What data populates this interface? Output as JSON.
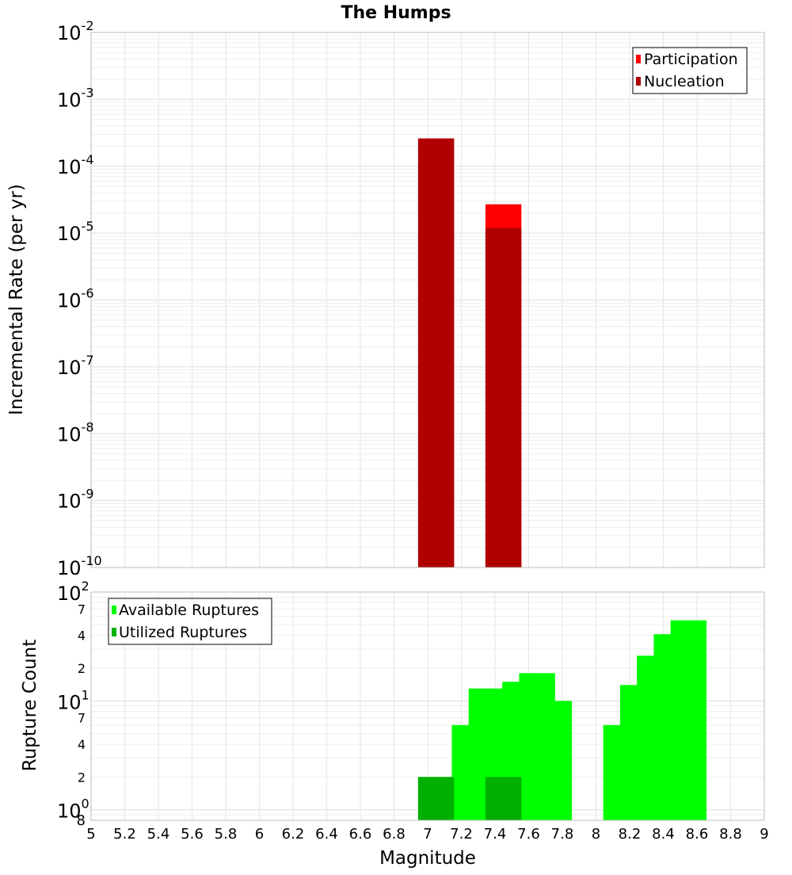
{
  "chart_data": [
    {
      "type": "bar",
      "title": "The Humps",
      "xlabel": "",
      "ylabel": "Incremental Rate (per yr)",
      "x_range": [
        5,
        9
      ],
      "y_scale": "log",
      "ylim": [
        1e-10,
        0.01
      ],
      "y_tick_exponents": [
        "-10",
        "-9",
        "-8",
        "-7",
        "-6",
        "-5",
        "-4",
        "-3",
        "-2"
      ],
      "grid": true,
      "legend_position": "top-right",
      "series": [
        {
          "name": "Participation",
          "color": "#ff0000",
          "x": [
            7.05,
            7.45
          ],
          "values": [
            0.00026,
            2.7e-05
          ]
        },
        {
          "name": "Nucleation",
          "color": "#b00000",
          "x": [
            7.05,
            7.45
          ],
          "values": [
            0.00026,
            1.2e-05
          ]
        }
      ]
    },
    {
      "type": "bar",
      "title": "",
      "xlabel": "Magnitude",
      "ylabel": "Rupture Count",
      "x_range": [
        5,
        9
      ],
      "x_ticks": [
        "5",
        "5.2",
        "5.4",
        "5.6",
        "5.8",
        "6",
        "6.2",
        "6.4",
        "6.6",
        "6.8",
        "7",
        "7.2",
        "7.4",
        "7.6",
        "7.8",
        "8",
        "8.2",
        "8.4",
        "8.6",
        "8.8",
        "9"
      ],
      "y_scale": "log",
      "ylim": [
        0.8,
        100
      ],
      "y_major_tick_exponents": [
        "0",
        "1",
        "2"
      ],
      "y_minor_tick_labels": [
        "2",
        "4",
        "7",
        "2",
        "4",
        "7"
      ],
      "y_bottom_label": "8",
      "grid": true,
      "legend_position": "top-left",
      "series": [
        {
          "name": "Available Ruptures",
          "color": "#00ff00",
          "x": [
            7.05,
            7.15,
            7.25,
            7.35,
            7.45,
            7.55,
            7.65,
            7.75,
            8.15,
            8.25,
            8.35,
            8.45,
            8.55
          ],
          "values": [
            2,
            1,
            6,
            13,
            12,
            15,
            18,
            10,
            6,
            14,
            26,
            41,
            55
          ]
        },
        {
          "name": "Utilized Ruptures",
          "color": "#00b000",
          "x": [
            7.05,
            7.45
          ],
          "values": [
            2,
            2
          ]
        }
      ]
    }
  ]
}
